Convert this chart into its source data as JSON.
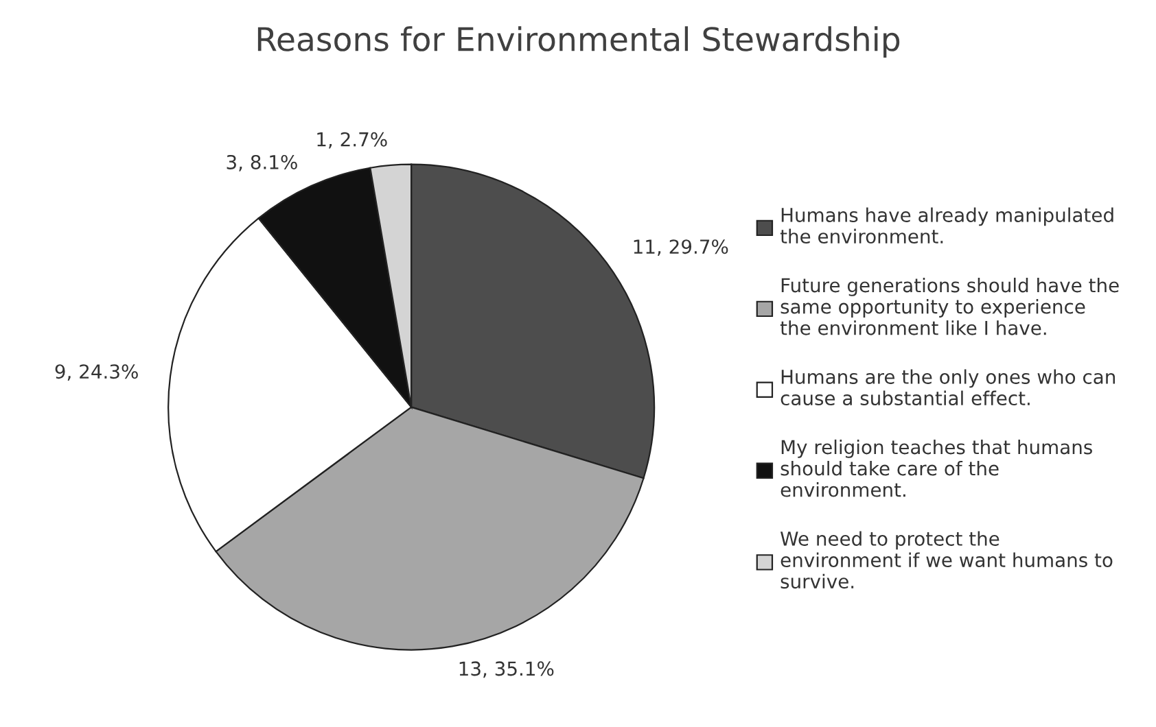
{
  "chart_data": {
    "type": "pie",
    "title": "Reasons for Environmental Stewardship",
    "categories": [
      "Humans have already manipulated\nthe environment.",
      "Future generations should have the\nsame opportunity to experience\nthe environment like I have.",
      "Humans are the only ones who can\ncause a substantial effect.",
      "My religion teaches that humans\nshould take care of the\nenvironment.",
      "We need to protect the\nenvironment if we want humans to\nsurvive."
    ],
    "values": [
      11,
      13,
      9,
      3,
      1
    ],
    "colors": [
      "#4d4d4d",
      "#a6a6a6",
      "#ffffff",
      "#111111",
      "#d4d4d4"
    ],
    "value_labels": [
      "11, 29.7%",
      "13, 35.1%",
      "9, 24.3%",
      "3, 8.1%",
      "1, 2.7%"
    ],
    "legend": "right"
  }
}
